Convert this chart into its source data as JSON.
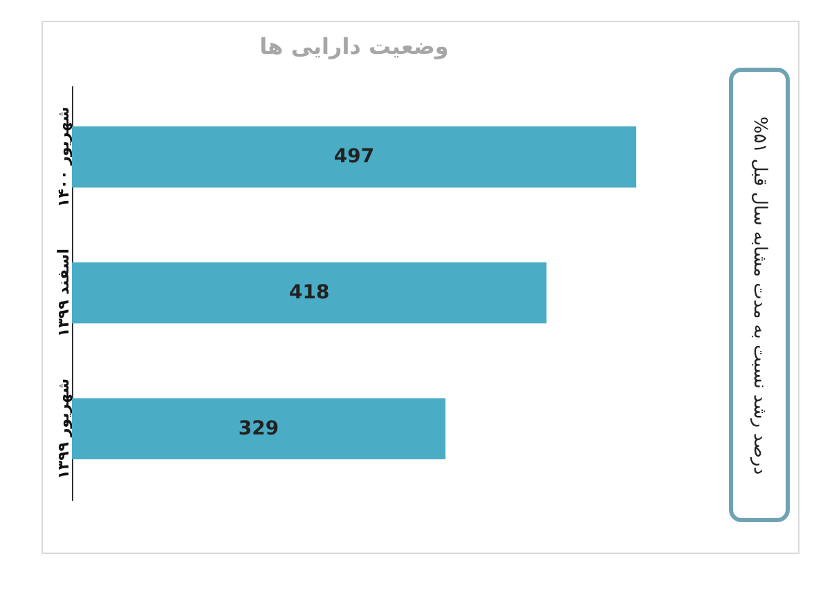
{
  "chart_data": {
    "type": "bar",
    "orientation": "horizontal",
    "title": "وضعیت دارایی ها",
    "categories": [
      "شهریور ۱۴۰۰",
      "اسفند ۱۳۹۹",
      "شهریور ۱۳۹۹"
    ],
    "values": [
      497,
      418,
      329
    ],
    "color": "#4bacc6",
    "data_labels": true,
    "tick_labels": "y",
    "annotations": [
      "درصد رشد نسبت به مدت مشابه سال قبل ۵۱%"
    ]
  }
}
